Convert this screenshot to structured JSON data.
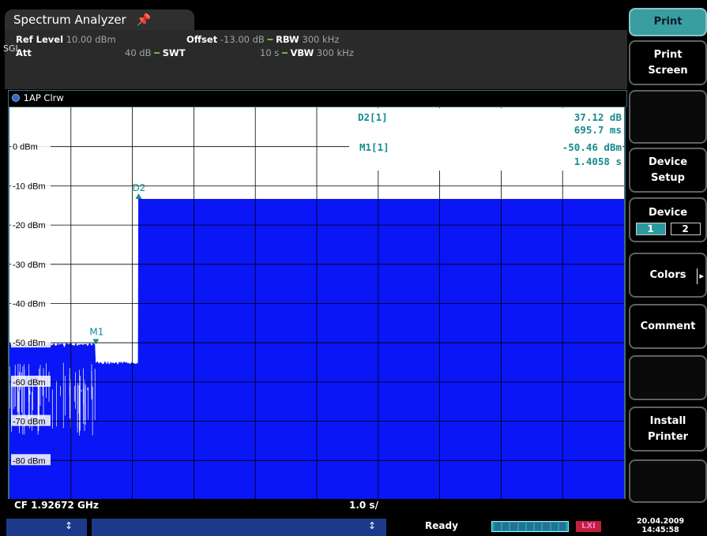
{
  "app": {
    "title": "Spectrum Analyzer"
  },
  "settings": {
    "ref_level_label": "Ref Level",
    "ref_level_value": "10.00 dBm",
    "offset_label": "Offset",
    "offset_value": "-13.00 dB",
    "rbw_label": "RBW",
    "rbw_value": "300 kHz",
    "att_label": "Att",
    "att_value": "40 dB",
    "swt_label": "SWT",
    "swt_value": "10 s",
    "vbw_label": "VBW",
    "vbw_value": "300 kHz",
    "mode": "SGL"
  },
  "trace": {
    "label": "1AP Clrw",
    "indicator_color": "#2e67d6"
  },
  "marker_table": {
    "d2_name": "D2[1]",
    "d2_value": "37.12 dB",
    "d2_time": "695.7 ms",
    "m1_name": "M1[1]",
    "m1_value": "-50.46 dBm",
    "m1_time": "1.4058 s"
  },
  "chart_data": {
    "type": "area",
    "x_unit": "s",
    "y_unit": "dBm",
    "xlim": [
      0,
      10
    ],
    "ylim": [
      -90,
      10
    ],
    "y_ticks": [
      0,
      -10,
      -20,
      -30,
      -40,
      -50,
      -60,
      -70,
      -80
    ],
    "y_tick_labels": [
      "0 dBm",
      "-10 dBm",
      "-20 dBm",
      "-30 dBm",
      "-40 dBm",
      "-50 dBm",
      "-60 dBm",
      "-70 dBm",
      "-80 dBm"
    ],
    "grid": true,
    "fill_color": "#0a16f5",
    "segments": [
      {
        "x": [
          0,
          1.4
        ],
        "y": -50.5,
        "noise": true
      },
      {
        "x": [
          1.4,
          2.1
        ],
        "y": -55.2,
        "noise": true
      },
      {
        "x": [
          2.1,
          10
        ],
        "y": -13.4,
        "noise": false
      }
    ],
    "markers": [
      {
        "name": "M1",
        "x": 1.4058,
        "y": -50.46
      },
      {
        "name": "D2",
        "x": 2.1015,
        "y": -13.34
      }
    ],
    "cf_label": "CF 1.92672 GHz",
    "time_div_label": "1.0 s/"
  },
  "softkeys": [
    {
      "label": "Print",
      "kind": "header"
    },
    {
      "label": "Print\nScreen",
      "kind": "normal"
    },
    {
      "label": "",
      "kind": "blank"
    },
    {
      "label": "Device\nSetup",
      "kind": "normal"
    },
    {
      "label": "Device",
      "kind": "toggle",
      "options": [
        "1",
        "2"
      ],
      "selected": "1"
    },
    {
      "label": "Colors",
      "kind": "normal"
    },
    {
      "label": "Comment",
      "kind": "normal"
    },
    {
      "label": "",
      "kind": "blank"
    },
    {
      "label": "Install\nPrinter",
      "kind": "normal"
    },
    {
      "label": "",
      "kind": "blank"
    }
  ],
  "status": {
    "ready": "Ready",
    "date": "20.04.2009",
    "time": "14:45:58",
    "lxi": "LXI"
  }
}
